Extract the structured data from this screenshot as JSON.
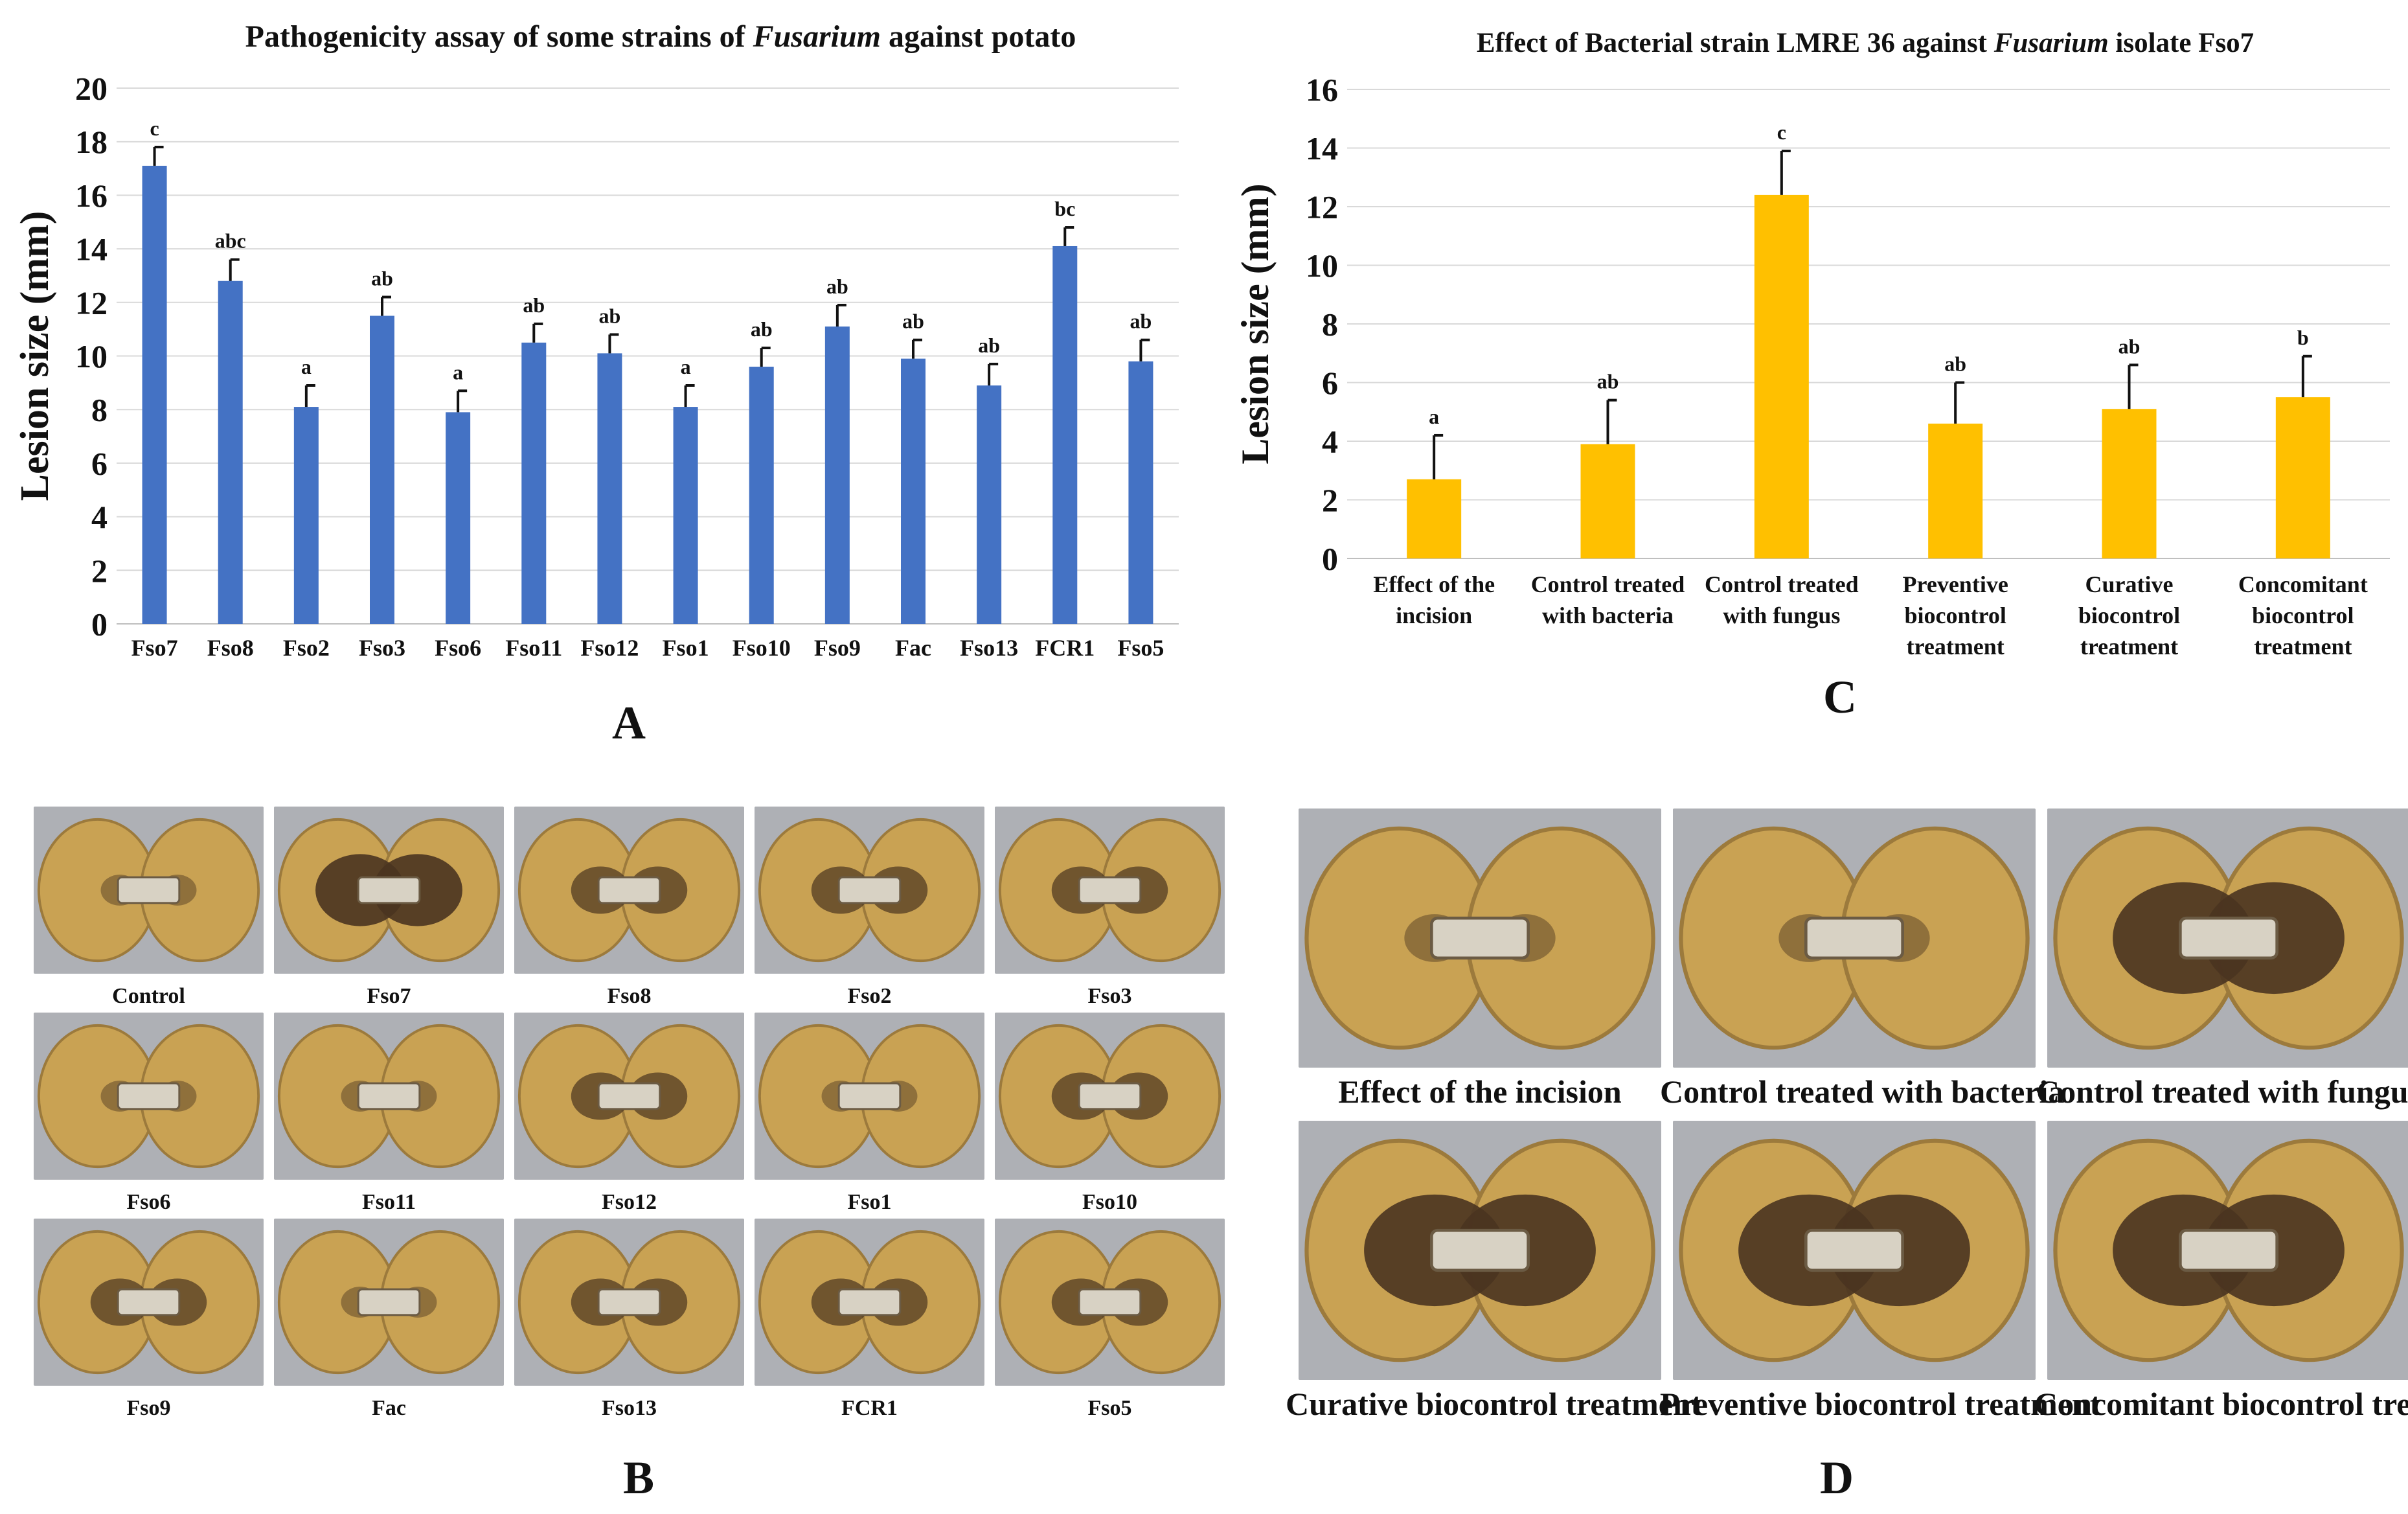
{
  "chart_data": [
    {
      "type": "bar",
      "panel": "A",
      "title_prefix": "Pathogenicity assay of some strains of ",
      "title_italic": "Fusarium",
      "title_suffix": " against potato",
      "ylabel": "Lesion size (mm)",
      "xlabel": "",
      "ylim": [
        0,
        20
      ],
      "yticks": [
        0,
        2,
        4,
        6,
        8,
        10,
        12,
        14,
        16,
        18,
        20
      ],
      "grid": true,
      "color": "#4472C4",
      "categories": [
        "Fso7",
        "Fso8",
        "Fso2",
        "Fso3",
        "Fso6",
        "Fso11",
        "Fso12",
        "Fso1",
        "Fso10",
        "Fso9",
        "Fac",
        "Fso13",
        "FCR1",
        "Fso5"
      ],
      "values": [
        17.1,
        12.8,
        8.1,
        11.5,
        7.9,
        10.5,
        10.1,
        8.1,
        9.6,
        11.1,
        9.9,
        8.9,
        14.1,
        9.8
      ],
      "errors": [
        0.7,
        0.8,
        0.8,
        0.7,
        0.8,
        0.7,
        0.7,
        0.8,
        0.7,
        0.8,
        0.7,
        0.8,
        0.7,
        0.8
      ],
      "letters": [
        "c",
        "abc",
        "a",
        "ab",
        "a",
        "ab",
        "ab",
        "a",
        "ab",
        "ab",
        "ab",
        "ab",
        "bc",
        "ab"
      ]
    },
    {
      "type": "bar",
      "panel": "C",
      "title_prefix": "Effect of Bacterial strain LMRE 36 against ",
      "title_italic": "Fusarium",
      "title_suffix": " isolate Fso7",
      "ylabel": "Lesion size (mm)",
      "xlabel": "",
      "ylim": [
        0,
        16
      ],
      "yticks": [
        0,
        2,
        4,
        6,
        8,
        10,
        12,
        14,
        16
      ],
      "grid": true,
      "color": "#FFC000",
      "categories": [
        [
          "Effect of the",
          "incision"
        ],
        [
          "Control treated",
          "with bacteria"
        ],
        [
          "Control treated",
          "with fungus"
        ],
        [
          "Preventive",
          "biocontrol",
          "treatment"
        ],
        [
          "Curative",
          "biocontrol",
          "treatment"
        ],
        [
          "Concomitant",
          "biocontrol",
          "treatment"
        ]
      ],
      "values": [
        2.7,
        3.9,
        12.4,
        4.6,
        5.1,
        5.5
      ],
      "errors": [
        1.5,
        1.5,
        1.5,
        1.4,
        1.5,
        1.4
      ],
      "letters": [
        "a",
        "ab",
        "c",
        "ab",
        "ab",
        "b"
      ]
    }
  ],
  "panels": {
    "a": "A",
    "b": "B",
    "c": "C",
    "d": "D"
  },
  "photos_b": [
    {
      "label": "Control",
      "lesion": "light"
    },
    {
      "label": "Fso7",
      "lesion": "heavy"
    },
    {
      "label": "Fso8",
      "lesion": "medium"
    },
    {
      "label": "Fso2",
      "lesion": "medium"
    },
    {
      "label": "Fso3",
      "lesion": "medium"
    },
    {
      "label": "Fso6",
      "lesion": "light"
    },
    {
      "label": "Fso11",
      "lesion": "light"
    },
    {
      "label": "Fso12",
      "lesion": "medium"
    },
    {
      "label": "Fso1",
      "lesion": "light"
    },
    {
      "label": "Fso10",
      "lesion": "medium"
    },
    {
      "label": "Fso9",
      "lesion": "medium"
    },
    {
      "label": "Fac",
      "lesion": "light"
    },
    {
      "label": "Fso13",
      "lesion": "medium"
    },
    {
      "label": "FCR1",
      "lesion": "medium"
    },
    {
      "label": "Fso5",
      "lesion": "medium"
    }
  ],
  "photos_d": [
    {
      "label": "Effect of the incision",
      "lesion": "light"
    },
    {
      "label": "Control treated with bacteria",
      "lesion": "light"
    },
    {
      "label": "Control treated with fungus",
      "lesion": "heavy"
    },
    {
      "label": "Curative biocontrol treatment",
      "lesion": "heavy"
    },
    {
      "label": "Preventive biocontrol treatment",
      "lesion": "heavy"
    },
    {
      "label": "Concomitant biocontrol treatment",
      "lesion": "heavy"
    }
  ],
  "colors": {
    "tuber_flesh": "#C9A253",
    "tuber_skin": "#9C7A3C",
    "background_photo": "#AEB0B5",
    "lesion_dark": "#4A3420",
    "wound_core": "#D8D2C4"
  }
}
